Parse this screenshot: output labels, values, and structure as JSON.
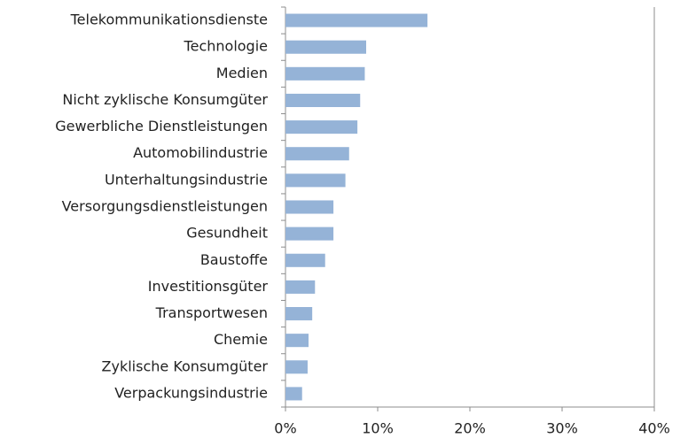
{
  "chart_data": {
    "type": "barh",
    "categories": [
      "Telekommunikationsdienste",
      "Technologie",
      "Medien",
      "Nicht zyklische Konsumgüter",
      "Gewerbliche Dienstleistungen",
      "Automobilindustrie",
      "Unterhaltungsindustrie",
      "Versorgungsdienstleistungen",
      "Gesundheit",
      "Baustoffe",
      "Investitionsgüter",
      "Transportwesen",
      "Chemie",
      "Zyklische Konsumgüter",
      "Verpackungsindustrie"
    ],
    "values": [
      15.4,
      8.75,
      8.6,
      8.1,
      7.8,
      6.9,
      6.5,
      5.2,
      5.2,
      4.3,
      3.2,
      2.9,
      2.5,
      2.4,
      1.8
    ],
    "color": "#95b3d7",
    "xlim": [
      0,
      40
    ],
    "xticks": [
      {
        "value": 0,
        "label": "0%"
      },
      {
        "value": 10,
        "label": "10%"
      },
      {
        "value": 20,
        "label": "20%"
      },
      {
        "value": 30,
        "label": "30%"
      },
      {
        "value": 40,
        "label": "40%"
      }
    ],
    "grid": false
  }
}
